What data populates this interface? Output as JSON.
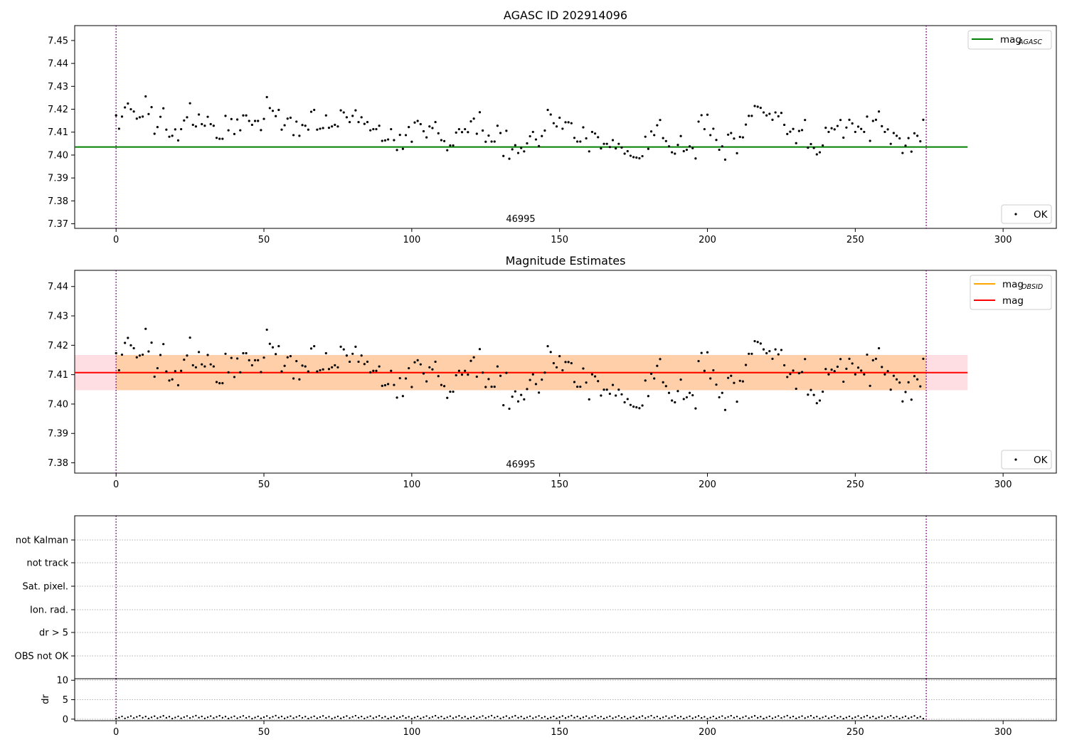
{
  "chart_data": [
    {
      "type": "scatter",
      "title": "AGASC ID 202914096",
      "xlim": [
        -14,
        318
      ],
      "ylim": [
        7.368,
        7.4565
      ],
      "xticks": [
        "0",
        "50",
        "100",
        "150",
        "200",
        "250",
        "300"
      ],
      "yticks": [
        "7.37",
        "7.38",
        "7.39",
        "7.40",
        "7.41",
        "7.42",
        "7.43",
        "7.44",
        "7.45"
      ],
      "xticks_values": [
        0,
        50,
        100,
        150,
        200,
        250,
        300
      ],
      "yticks_values": [
        7.37,
        7.38,
        7.39,
        7.4,
        7.41,
        7.42,
        7.43,
        7.44,
        7.45
      ],
      "hlines": [
        {
          "name": "mag",
          "subscript": "AGASC",
          "y": 7.4035,
          "x": [
            -14,
            288
          ],
          "color": "#008000"
        }
      ],
      "vlines": {
        "x": [
          0,
          274
        ],
        "color": "#800080",
        "style": "dotted"
      },
      "obsid_label": {
        "text": "46995",
        "x": 137
      },
      "legend_lines": [
        {
          "label": "mag",
          "subscript": "AGASC",
          "color": "#008000"
        }
      ],
      "legend_points": [
        {
          "label": "OK",
          "color": "#000000"
        }
      ],
      "points_ref": "points"
    },
    {
      "type": "scatter",
      "title": "Magnitude Estimates",
      "xlim": [
        -14,
        318
      ],
      "ylim": [
        7.3765,
        7.4455
      ],
      "xticks": [
        "0",
        "50",
        "100",
        "150",
        "200",
        "250",
        "300"
      ],
      "yticks": [
        "7.38",
        "7.39",
        "7.40",
        "7.41",
        "7.42",
        "7.43",
        "7.44"
      ],
      "xticks_values": [
        0,
        50,
        100,
        150,
        200,
        250,
        300
      ],
      "yticks_values": [
        7.38,
        7.39,
        7.4,
        7.41,
        7.42,
        7.43,
        7.44
      ],
      "hlines": [
        {
          "name": "mag",
          "subscript": "OBSID",
          "y": 7.4107,
          "x": [
            0,
            274
          ],
          "color": "#FFA500"
        },
        {
          "name": "mag",
          "subscript": "",
          "y": 7.4107,
          "x": [
            -14,
            288
          ],
          "color": "#FF0000"
        }
      ],
      "bands": [
        {
          "y": [
            7.4047,
            7.4167
          ],
          "x": [
            -14,
            288
          ],
          "color": "#FFB6C1",
          "opacity": 0.45
        },
        {
          "y": [
            7.4047,
            7.4167
          ],
          "x": [
            0,
            274
          ],
          "color": "#FFA500",
          "opacity": 0.25
        }
      ],
      "vlines": {
        "x": [
          0,
          274
        ],
        "color": "#800080",
        "style": "dotted"
      },
      "obsid_label": {
        "text": "46995",
        "x": 137
      },
      "legend_lines": [
        {
          "label": "mag",
          "subscript": "OBSID",
          "color": "#FFA500"
        },
        {
          "label": "mag",
          "subscript": "",
          "color": "#FF0000"
        }
      ],
      "legend_points": [
        {
          "label": "OK",
          "color": "#000000"
        }
      ],
      "points_ref": "points"
    },
    {
      "type": "scatter",
      "title": "",
      "xlim": [
        -14,
        318
      ],
      "categories": [
        "not Kalman",
        "not track",
        "Sat. pixel.",
        "Ion. rad.",
        "dr > 5",
        "OBS not OK"
      ],
      "vlines": {
        "x": [
          0,
          274
        ],
        "color": "#800080",
        "style": "dotted"
      },
      "flag_points": []
    },
    {
      "type": "scatter",
      "title": "",
      "ylabel": "dr",
      "xlim": [
        -14,
        318
      ],
      "ylim": [
        -0.4,
        10.4
      ],
      "xticks": [
        "0",
        "50",
        "100",
        "150",
        "200",
        "250",
        "300"
      ],
      "yticks": [
        "0",
        "5",
        "10"
      ],
      "xticks_values": [
        0,
        50,
        100,
        150,
        200,
        250,
        300
      ],
      "yticks_values": [
        0,
        5,
        10
      ],
      "vlines": {
        "x": [
          0,
          274
        ],
        "color": "#800080",
        "style": "dotted"
      },
      "dr_range": [
        0.1,
        0.9
      ]
    }
  ],
  "points": [
    [
      0,
      7.4173
    ],
    [
      1,
      7.4115
    ],
    [
      2,
      7.4168
    ],
    [
      3,
      7.4208
    ],
    [
      4,
      7.4225
    ],
    [
      5,
      7.42
    ],
    [
      6,
      7.419
    ],
    [
      7,
      7.4159
    ],
    [
      8,
      7.4165
    ],
    [
      9,
      7.4168
    ],
    [
      10,
      7.4256
    ],
    [
      11,
      7.4179
    ],
    [
      12,
      7.4209
    ],
    [
      13,
      7.4093
    ],
    [
      14,
      7.4122
    ],
    [
      15,
      7.4167
    ],
    [
      16,
      7.4204
    ],
    [
      17,
      7.4111
    ],
    [
      18,
      7.408
    ],
    [
      19,
      7.4084
    ],
    [
      20,
      7.4112
    ],
    [
      21,
      7.4064
    ],
    [
      22,
      7.4113
    ],
    [
      23,
      7.4151
    ],
    [
      24,
      7.4165
    ],
    [
      25,
      7.4226
    ],
    [
      26,
      7.4132
    ],
    [
      27,
      7.4125
    ],
    [
      28,
      7.4177
    ],
    [
      29,
      7.4135
    ],
    [
      30,
      7.4128
    ],
    [
      31,
      7.4167
    ],
    [
      32,
      7.4135
    ],
    [
      33,
      7.4128
    ],
    [
      34,
      7.4075
    ],
    [
      35,
      7.4071
    ],
    [
      36,
      7.4071
    ],
    [
      37,
      7.4171
    ],
    [
      38,
      7.4108
    ],
    [
      39,
      7.4157
    ],
    [
      40,
      7.4092
    ],
    [
      41,
      7.4155
    ],
    [
      42,
      7.4108
    ],
    [
      43,
      7.4173
    ],
    [
      44,
      7.4173
    ],
    [
      45,
      7.4149
    ],
    [
      46,
      7.4132
    ],
    [
      47,
      7.4149
    ],
    [
      48,
      7.4149
    ],
    [
      49,
      7.4109
    ],
    [
      50,
      7.4158
    ],
    [
      51,
      7.4253
    ],
    [
      52,
      7.4205
    ],
    [
      53,
      7.4193
    ],
    [
      54,
      7.417
    ],
    [
      55,
      7.4197
    ],
    [
      56,
      7.4111
    ],
    [
      57,
      7.413
    ],
    [
      58,
      7.4159
    ],
    [
      59,
      7.4163
    ],
    [
      60,
      7.4087
    ],
    [
      61,
      7.4146
    ],
    [
      62,
      7.4084
    ],
    [
      63,
      7.4131
    ],
    [
      64,
      7.4128
    ],
    [
      65,
      7.4111
    ],
    [
      66,
      7.4189
    ],
    [
      67,
      7.4197
    ],
    [
      68,
      7.4111
    ],
    [
      69,
      7.4115
    ],
    [
      70,
      7.4118
    ],
    [
      71,
      7.4173
    ],
    [
      72,
      7.4119
    ],
    [
      73,
      7.4125
    ],
    [
      74,
      7.4132
    ],
    [
      75,
      7.4125
    ],
    [
      76,
      7.4195
    ],
    [
      77,
      7.4186
    ],
    [
      78,
      7.4165
    ],
    [
      79,
      7.4144
    ],
    [
      80,
      7.4171
    ],
    [
      81,
      7.4195
    ],
    [
      82,
      7.4144
    ],
    [
      83,
      7.4165
    ],
    [
      84,
      7.4136
    ],
    [
      85,
      7.4144
    ],
    [
      86,
      7.4108
    ],
    [
      87,
      7.4113
    ],
    [
      88,
      7.4113
    ],
    [
      89,
      7.4128
    ],
    [
      90,
      7.4062
    ],
    [
      91,
      7.4064
    ],
    [
      92,
      7.4068
    ],
    [
      93,
      7.4113
    ],
    [
      94,
      7.4065
    ],
    [
      95,
      7.4022
    ],
    [
      96,
      7.4088
    ],
    [
      97,
      7.4027
    ],
    [
      98,
      7.4087
    ],
    [
      99,
      7.4122
    ],
    [
      100,
      7.4058
    ],
    [
      101,
      7.4142
    ],
    [
      102,
      7.4149
    ],
    [
      103,
      7.4135
    ],
    [
      104,
      7.4104
    ],
    [
      105,
      7.4077
    ],
    [
      106,
      7.4125
    ],
    [
      107,
      7.4118
    ],
    [
      108,
      7.4144
    ],
    [
      109,
      7.4095
    ],
    [
      110,
      7.4065
    ],
    [
      111,
      7.4061
    ],
    [
      112,
      7.4021
    ],
    [
      113,
      7.4042
    ],
    [
      114,
      7.4042
    ],
    [
      115,
      7.4098
    ],
    [
      116,
      7.4113
    ],
    [
      117,
      7.41
    ],
    [
      118,
      7.4113
    ],
    [
      119,
      7.41
    ],
    [
      120,
      7.4147
    ],
    [
      121,
      7.4159
    ],
    [
      122,
      7.4093
    ],
    [
      123,
      7.4187
    ],
    [
      124,
      7.4107
    ],
    [
      125,
      7.4058
    ],
    [
      126,
      7.4085
    ],
    [
      127,
      7.4059
    ],
    [
      128,
      7.4059
    ],
    [
      129,
      7.4128
    ],
    [
      130,
      7.4096
    ],
    [
      131,
      7.3996
    ],
    [
      132,
      7.4106
    ],
    [
      133,
      7.3984
    ],
    [
      134,
      7.4025
    ],
    [
      135,
      7.4043
    ],
    [
      136,
      7.4009
    ],
    [
      137,
      7.4031
    ],
    [
      138,
      7.4016
    ],
    [
      139,
      7.4051
    ],
    [
      140,
      7.4082
    ],
    [
      141,
      7.4101
    ],
    [
      142,
      7.4068
    ],
    [
      143,
      7.4039
    ],
    [
      144,
      7.4083
    ],
    [
      145,
      7.4107
    ],
    [
      146,
      7.4197
    ],
    [
      147,
      7.4177
    ],
    [
      148,
      7.4139
    ],
    [
      149,
      7.4125
    ],
    [
      150,
      7.4163
    ],
    [
      151,
      7.4115
    ],
    [
      152,
      7.4143
    ],
    [
      153,
      7.4143
    ],
    [
      154,
      7.4139
    ],
    [
      155,
      7.4075
    ],
    [
      156,
      7.4059
    ],
    [
      157,
      7.4059
    ],
    [
      158,
      7.4121
    ],
    [
      159,
      7.4073
    ],
    [
      160,
      7.4016
    ],
    [
      161,
      7.4101
    ],
    [
      162,
      7.4094
    ],
    [
      163,
      7.4078
    ],
    [
      164,
      7.4029
    ],
    [
      165,
      7.4049
    ],
    [
      166,
      7.4049
    ],
    [
      167,
      7.4035
    ],
    [
      168,
      7.4065
    ],
    [
      169,
      7.4029
    ],
    [
      170,
      7.4049
    ],
    [
      171,
      7.4033
    ],
    [
      172,
      7.4006
    ],
    [
      173,
      7.4017
    ],
    [
      174,
      7.3997
    ],
    [
      175,
      7.3991
    ],
    [
      176,
      7.3989
    ],
    [
      177,
      7.3986
    ],
    [
      178,
      7.3995
    ],
    [
      179,
      7.408
    ],
    [
      180,
      7.4027
    ],
    [
      181,
      7.4103
    ],
    [
      182,
      7.4087
    ],
    [
      183,
      7.413
    ],
    [
      184,
      7.4153
    ],
    [
      185,
      7.4074
    ],
    [
      186,
      7.4061
    ],
    [
      187,
      7.4038
    ],
    [
      188,
      7.4012
    ],
    [
      189,
      7.4006
    ],
    [
      190,
      7.4044
    ],
    [
      191,
      7.4083
    ],
    [
      192,
      7.4017
    ],
    [
      193,
      7.4023
    ],
    [
      194,
      7.4038
    ],
    [
      195,
      7.403
    ],
    [
      196,
      7.3985
    ],
    [
      197,
      7.4146
    ],
    [
      198,
      7.4174
    ],
    [
      199,
      7.4113
    ],
    [
      200,
      7.4176
    ],
    [
      201,
      7.4087
    ],
    [
      202,
      7.4115
    ],
    [
      203,
      7.4066
    ],
    [
      204,
      7.4023
    ],
    [
      205,
      7.4038
    ],
    [
      206,
      7.398
    ],
    [
      207,
      7.4089
    ],
    [
      208,
      7.4096
    ],
    [
      209,
      7.4072
    ],
    [
      210,
      7.4008
    ],
    [
      211,
      7.4079
    ],
    [
      212,
      7.4077
    ],
    [
      213,
      7.4133
    ],
    [
      214,
      7.4171
    ],
    [
      215,
      7.4171
    ],
    [
      216,
      7.4214
    ],
    [
      217,
      7.4211
    ],
    [
      218,
      7.4206
    ],
    [
      219,
      7.4186
    ],
    [
      220,
      7.4173
    ],
    [
      221,
      7.418
    ],
    [
      222,
      7.4154
    ],
    [
      223,
      7.4186
    ],
    [
      224,
      7.4169
    ],
    [
      225,
      7.4184
    ],
    [
      226,
      7.4132
    ],
    [
      227,
      7.4092
    ],
    [
      228,
      7.4102
    ],
    [
      229,
      7.4114
    ],
    [
      230,
      7.4052
    ],
    [
      231,
      7.4105
    ],
    [
      232,
      7.4109
    ],
    [
      233,
      7.4153
    ],
    [
      234,
      7.4032
    ],
    [
      235,
      7.4048
    ],
    [
      236,
      7.4031
    ],
    [
      237,
      7.4003
    ],
    [
      238,
      7.4012
    ],
    [
      239,
      7.4042
    ],
    [
      240,
      7.4119
    ],
    [
      241,
      7.4101
    ],
    [
      242,
      7.4117
    ],
    [
      243,
      7.4112
    ],
    [
      244,
      7.4127
    ],
    [
      245,
      7.4153
    ],
    [
      246,
      7.4076
    ],
    [
      247,
      7.412
    ],
    [
      248,
      7.4154
    ],
    [
      249,
      7.4138
    ],
    [
      250,
      7.4101
    ],
    [
      251,
      7.4124
    ],
    [
      252,
      7.4114
    ],
    [
      253,
      7.4101
    ],
    [
      254,
      7.4168
    ],
    [
      255,
      7.4062
    ],
    [
      256,
      7.4149
    ],
    [
      257,
      7.4154
    ],
    [
      258,
      7.419
    ],
    [
      259,
      7.4126
    ],
    [
      260,
      7.4101
    ],
    [
      261,
      7.4112
    ],
    [
      262,
      7.4049
    ],
    [
      263,
      7.4096
    ],
    [
      264,
      7.4084
    ],
    [
      265,
      7.4073
    ],
    [
      266,
      7.4009
    ],
    [
      267,
      7.4041
    ],
    [
      268,
      7.4074
    ],
    [
      269,
      7.4015
    ],
    [
      270,
      7.4095
    ],
    [
      271,
      7.4084
    ],
    [
      272,
      7.406
    ],
    [
      273,
      7.4154
    ]
  ]
}
